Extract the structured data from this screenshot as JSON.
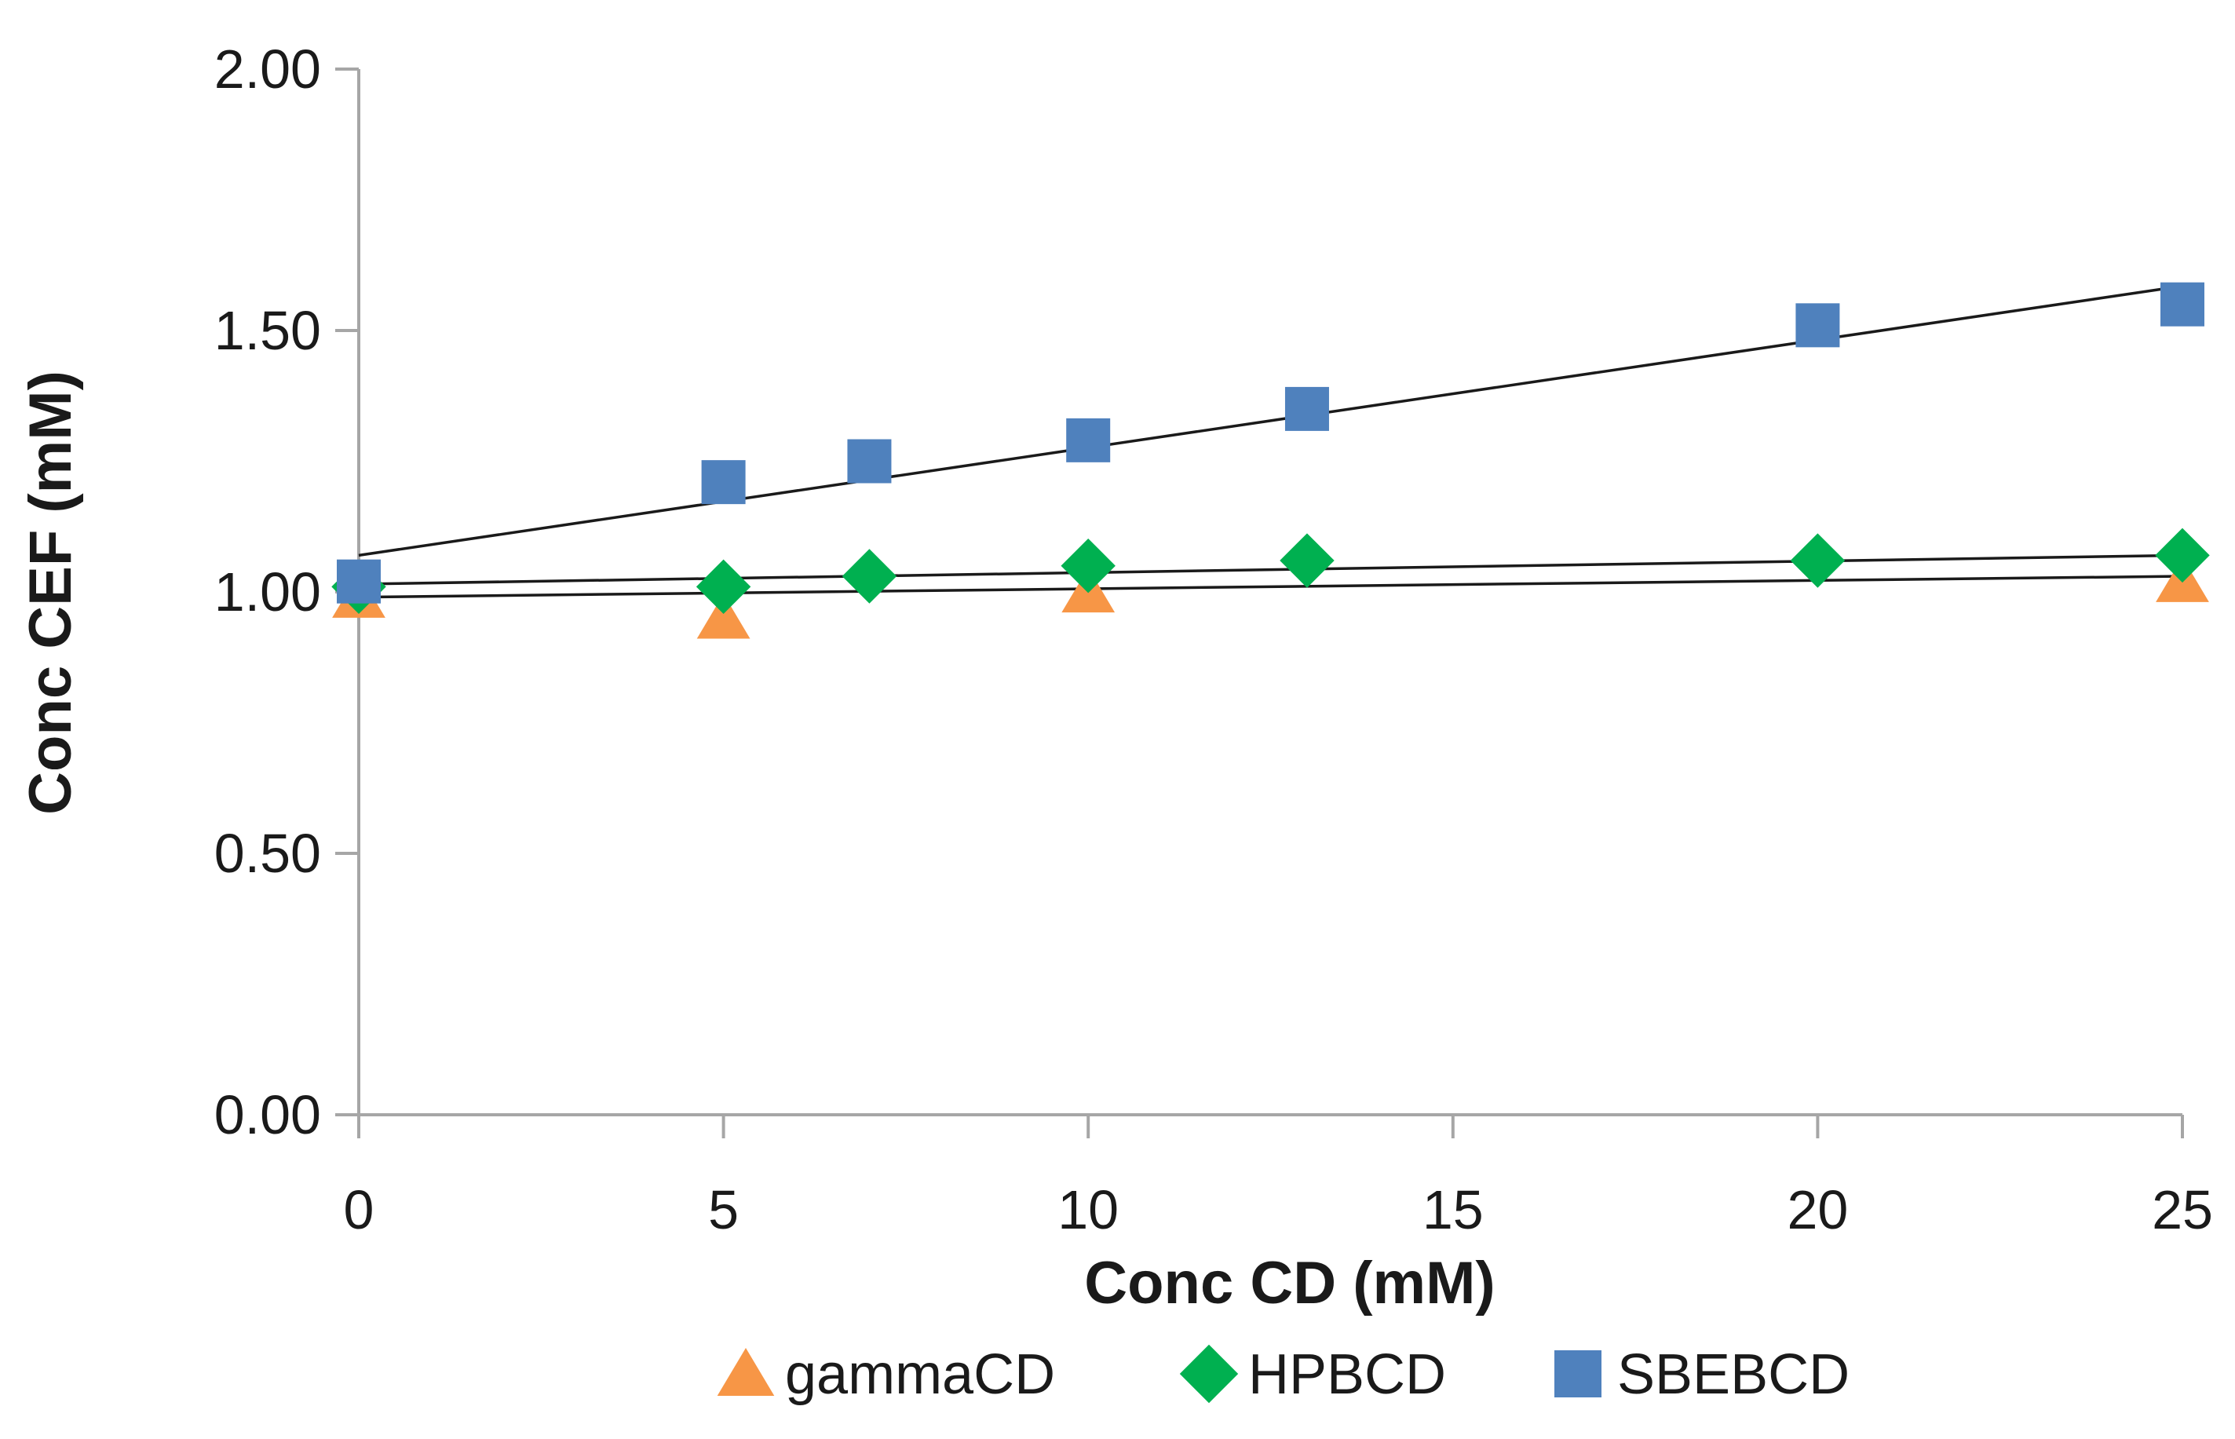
{
  "chart_data": {
    "type": "scatter",
    "title": "",
    "xlabel": "Conc CD (mM)",
    "ylabel": "Conc CEF (mM)",
    "xlim": [
      0,
      25
    ],
    "ylim": [
      0,
      2
    ],
    "xticks": [
      0,
      5,
      10,
      15,
      20,
      25
    ],
    "xtick_labels": [
      "0",
      "5",
      "10",
      "15",
      "20",
      "25"
    ],
    "yticks": [
      0,
      0.5,
      1,
      1.5,
      2
    ],
    "ytick_labels": [
      "0.00",
      "0.50",
      "1.00",
      "1.50",
      "2.00"
    ],
    "grid": false,
    "legend_position": "bottom",
    "series": [
      {
        "name": "gammaCD",
        "marker": "triangle",
        "color": "#F79646",
        "x": [
          0,
          5,
          10,
          25
        ],
        "y": [
          0.99,
          0.95,
          1.0,
          1.02
        ],
        "trendline": [
          0.99,
          1.03
        ]
      },
      {
        "name": "HPBCD",
        "marker": "diamond",
        "color": "#00B050",
        "x": [
          0,
          5,
          7,
          10,
          13,
          20,
          25
        ],
        "y": [
          1.01,
          1.01,
          1.03,
          1.05,
          1.06,
          1.06,
          1.07
        ],
        "trendline": [
          1.015,
          1.07
        ]
      },
      {
        "name": "SBEBCD",
        "marker": "square",
        "color": "#4F81BD",
        "x": [
          0,
          5,
          7,
          10,
          13,
          20,
          25
        ],
        "y": [
          1.02,
          1.21,
          1.25,
          1.29,
          1.35,
          1.51,
          1.55
        ],
        "trendline": [
          1.07,
          1.585
        ]
      }
    ],
    "trendline_color": "#1a1a1a"
  }
}
